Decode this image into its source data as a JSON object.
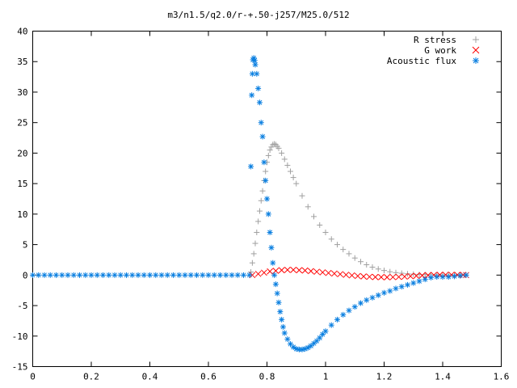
{
  "chart_data": {
    "type": "scatter",
    "title": "m3/n1.5/q2.0/r-+.50-j257/M25.0/512",
    "xlabel": "",
    "ylabel": "",
    "xlim": [
      0,
      1.6
    ],
    "ylim": [
      -15,
      40
    ],
    "x_ticks": [
      "0",
      "0.2",
      "0.4",
      "0.6",
      "0.8",
      "1",
      "1.2",
      "1.4",
      "1.6"
    ],
    "y_ticks": [
      "-15",
      "-10",
      "-5",
      "0",
      "5",
      "10",
      "15",
      "20",
      "25",
      "30",
      "35",
      "40"
    ],
    "grid": false,
    "legend_position": "top-right",
    "series": [
      {
        "name": "R stress",
        "marker": "+",
        "color": "#a0a0a0",
        "x": [
          0.745,
          0.75,
          0.755,
          0.76,
          0.765,
          0.77,
          0.775,
          0.78,
          0.785,
          0.79,
          0.795,
          0.8,
          0.805,
          0.81,
          0.815,
          0.82,
          0.825,
          0.83,
          0.835,
          0.84,
          0.85,
          0.86,
          0.87,
          0.88,
          0.89,
          0.9,
          0.92,
          0.94,
          0.96,
          0.98,
          1.0,
          1.02,
          1.04,
          1.06,
          1.08,
          1.1,
          1.12,
          1.14,
          1.16,
          1.18,
          1.2,
          1.22,
          1.24,
          1.26,
          1.28,
          1.3,
          1.32,
          1.34,
          1.36,
          1.38,
          1.4,
          1.42,
          1.44,
          1.46,
          1.48
        ],
        "y": [
          0.5,
          2.0,
          3.5,
          5.2,
          7.0,
          8.8,
          10.5,
          12.2,
          13.8,
          15.5,
          17.0,
          18.5,
          19.6,
          20.5,
          21.0,
          21.4,
          21.5,
          21.4,
          21.1,
          20.8,
          20.0,
          19.0,
          18.0,
          17.0,
          16.0,
          15.0,
          13.0,
          11.2,
          9.6,
          8.2,
          7.0,
          5.9,
          5.0,
          4.2,
          3.5,
          2.8,
          2.2,
          1.7,
          1.3,
          1.0,
          0.75,
          0.55,
          0.4,
          0.3,
          0.2,
          0.15,
          0.1,
          0.08,
          0.06,
          0.04,
          0.03,
          0.02,
          0.01,
          0.0,
          0.0
        ]
      },
      {
        "name": "G work",
        "marker": "x",
        "color": "#ff0000",
        "x": [
          0.75,
          0.77,
          0.79,
          0.81,
          0.83,
          0.85,
          0.87,
          0.89,
          0.91,
          0.93,
          0.95,
          0.97,
          0.99,
          1.01,
          1.03,
          1.05,
          1.07,
          1.09,
          1.11,
          1.13,
          1.15,
          1.17,
          1.19,
          1.21,
          1.23,
          1.25,
          1.27,
          1.29,
          1.31,
          1.33,
          1.35,
          1.37,
          1.39,
          1.41,
          1.43,
          1.45,
          1.47,
          1.48
        ],
        "y": [
          0.0,
          0.2,
          0.4,
          0.6,
          0.7,
          0.8,
          0.85,
          0.85,
          0.8,
          0.75,
          0.65,
          0.55,
          0.45,
          0.35,
          0.25,
          0.15,
          0.05,
          -0.05,
          -0.15,
          -0.22,
          -0.28,
          -0.32,
          -0.34,
          -0.35,
          -0.33,
          -0.3,
          -0.25,
          -0.18,
          -0.12,
          -0.06,
          -0.02,
          0.02,
          0.04,
          0.05,
          0.05,
          0.04,
          0.03,
          0.0
        ]
      },
      {
        "name": "Acoustic flux",
        "marker": "*",
        "color": "#0a7fe0",
        "x": [
          0.0,
          0.02,
          0.04,
          0.06,
          0.08,
          0.1,
          0.12,
          0.14,
          0.16,
          0.18,
          0.2,
          0.22,
          0.24,
          0.26,
          0.28,
          0.3,
          0.32,
          0.34,
          0.36,
          0.38,
          0.4,
          0.42,
          0.44,
          0.46,
          0.48,
          0.5,
          0.52,
          0.54,
          0.56,
          0.58,
          0.6,
          0.62,
          0.64,
          0.66,
          0.68,
          0.7,
          0.72,
          0.74,
          0.745,
          0.748,
          0.75,
          0.752,
          0.755,
          0.758,
          0.76,
          0.765,
          0.77,
          0.775,
          0.78,
          0.785,
          0.79,
          0.795,
          0.8,
          0.805,
          0.81,
          0.815,
          0.82,
          0.825,
          0.83,
          0.835,
          0.84,
          0.845,
          0.85,
          0.855,
          0.86,
          0.87,
          0.88,
          0.89,
          0.9,
          0.91,
          0.92,
          0.93,
          0.94,
          0.95,
          0.96,
          0.97,
          0.98,
          0.99,
          1.0,
          1.02,
          1.04,
          1.06,
          1.08,
          1.1,
          1.12,
          1.14,
          1.16,
          1.18,
          1.2,
          1.22,
          1.24,
          1.26,
          1.28,
          1.3,
          1.32,
          1.34,
          1.36,
          1.38,
          1.4,
          1.42,
          1.44,
          1.46,
          1.48
        ],
        "y": [
          0,
          0,
          0,
          0,
          0,
          0,
          0,
          0,
          0,
          0,
          0,
          0,
          0,
          0,
          0,
          0,
          0,
          0,
          0,
          0,
          0,
          0,
          0,
          0,
          0,
          0,
          0,
          0,
          0,
          0,
          0,
          0,
          0,
          0,
          0,
          0,
          0,
          0,
          17.8,
          29.5,
          33.0,
          35.3,
          35.6,
          35.2,
          34.5,
          33.0,
          30.6,
          28.3,
          25.0,
          22.7,
          18.5,
          15.5,
          12.5,
          10.0,
          7.0,
          4.5,
          2.0,
          0.0,
          -1.5,
          -3.0,
          -4.5,
          -6.0,
          -7.3,
          -8.5,
          -9.5,
          -10.5,
          -11.3,
          -11.8,
          -12.1,
          -12.2,
          -12.2,
          -12.1,
          -11.9,
          -11.6,
          -11.2,
          -10.8,
          -10.3,
          -9.7,
          -9.2,
          -8.2,
          -7.3,
          -6.5,
          -5.8,
          -5.2,
          -4.6,
          -4.1,
          -3.7,
          -3.3,
          -2.9,
          -2.6,
          -2.2,
          -1.9,
          -1.6,
          -1.3,
          -1.0,
          -0.7,
          -0.4,
          -0.3,
          -0.3,
          -0.3,
          -0.2,
          -0.1,
          0.0
        ]
      }
    ]
  }
}
